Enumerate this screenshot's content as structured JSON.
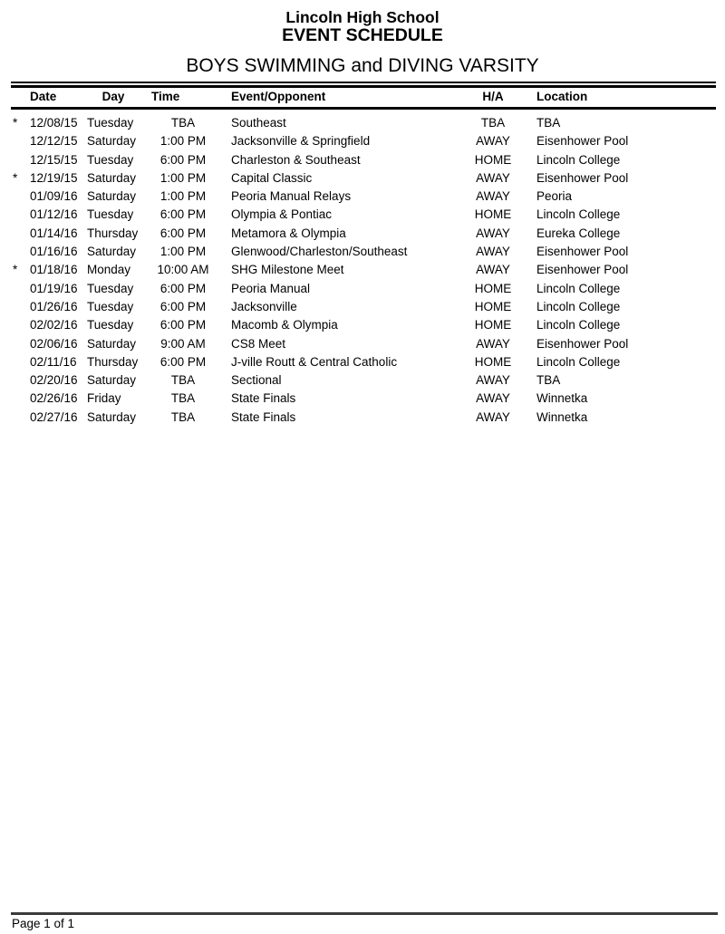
{
  "header": {
    "school": "Lincoln High School",
    "title": "EVENT SCHEDULE",
    "team": "BOYS SWIMMING and DIVING VARSITY"
  },
  "table": {
    "columns": [
      "Date",
      "Day",
      "Time",
      "Event/Opponent",
      "H/A",
      "Location"
    ],
    "flag_symbol": "*",
    "rows": [
      {
        "flag": "*",
        "date": "12/08/15",
        "day": "Tuesday",
        "time": "TBA",
        "event": "Southeast",
        "ha": "TBA",
        "location": "TBA"
      },
      {
        "flag": "",
        "date": "12/12/15",
        "day": "Saturday",
        "time": "1:00 PM",
        "event": "Jacksonville & Springfield",
        "ha": "AWAY",
        "location": "Eisenhower Pool"
      },
      {
        "flag": "",
        "date": "12/15/15",
        "day": "Tuesday",
        "time": "6:00 PM",
        "event": "Charleston & Southeast",
        "ha": "HOME",
        "location": "Lincoln College"
      },
      {
        "flag": "*",
        "date": "12/19/15",
        "day": "Saturday",
        "time": "1:00 PM",
        "event": "Capital Classic",
        "ha": "AWAY",
        "location": "Eisenhower Pool"
      },
      {
        "flag": "",
        "date": "01/09/16",
        "day": "Saturday",
        "time": "1:00 PM",
        "event": "Peoria Manual Relays",
        "ha": "AWAY",
        "location": "Peoria"
      },
      {
        "flag": "",
        "date": "01/12/16",
        "day": "Tuesday",
        "time": "6:00 PM",
        "event": "Olympia & Pontiac",
        "ha": "HOME",
        "location": "Lincoln College"
      },
      {
        "flag": "",
        "date": "01/14/16",
        "day": "Thursday",
        "time": "6:00 PM",
        "event": "Metamora & Olympia",
        "ha": "AWAY",
        "location": "Eureka College"
      },
      {
        "flag": "",
        "date": "01/16/16",
        "day": "Saturday",
        "time": "1:00 PM",
        "event": "Glenwood/Charleston/Southeast",
        "ha": "AWAY",
        "location": "Eisenhower Pool"
      },
      {
        "flag": "*",
        "date": "01/18/16",
        "day": "Monday",
        "time": "10:00 AM",
        "event": "SHG Milestone Meet",
        "ha": "AWAY",
        "location": "Eisenhower Pool"
      },
      {
        "flag": "",
        "date": "01/19/16",
        "day": "Tuesday",
        "time": "6:00 PM",
        "event": "Peoria Manual",
        "ha": "HOME",
        "location": "Lincoln College"
      },
      {
        "flag": "",
        "date": "01/26/16",
        "day": "Tuesday",
        "time": "6:00 PM",
        "event": "Jacksonville",
        "ha": "HOME",
        "location": "Lincoln College"
      },
      {
        "flag": "",
        "date": "02/02/16",
        "day": "Tuesday",
        "time": "6:00 PM",
        "event": "Macomb & Olympia",
        "ha": "HOME",
        "location": "Lincoln College"
      },
      {
        "flag": "",
        "date": "02/06/16",
        "day": "Saturday",
        "time": "9:00 AM",
        "event": "CS8 Meet",
        "ha": "AWAY",
        "location": "Eisenhower Pool"
      },
      {
        "flag": "",
        "date": "02/11/16",
        "day": "Thursday",
        "time": "6:00 PM",
        "event": "J-ville Routt & Central Catholic",
        "ha": "HOME",
        "location": "Lincoln College"
      },
      {
        "flag": "",
        "date": "02/20/16",
        "day": "Saturday",
        "time": "TBA",
        "event": "Sectional",
        "ha": "AWAY",
        "location": "TBA"
      },
      {
        "flag": "",
        "date": "02/26/16",
        "day": "Friday",
        "time": "TBA",
        "event": "State Finals",
        "ha": "AWAY",
        "location": "Winnetka"
      },
      {
        "flag": "",
        "date": "02/27/16",
        "day": "Saturday",
        "time": "TBA",
        "event": "State Finals",
        "ha": "AWAY",
        "location": "Winnetka"
      }
    ]
  },
  "footer": {
    "page_label": "Page 1 of 1"
  },
  "colors": {
    "text": "#000000",
    "table_rule": "#000000",
    "footer_rule": "#3a3a3a"
  }
}
